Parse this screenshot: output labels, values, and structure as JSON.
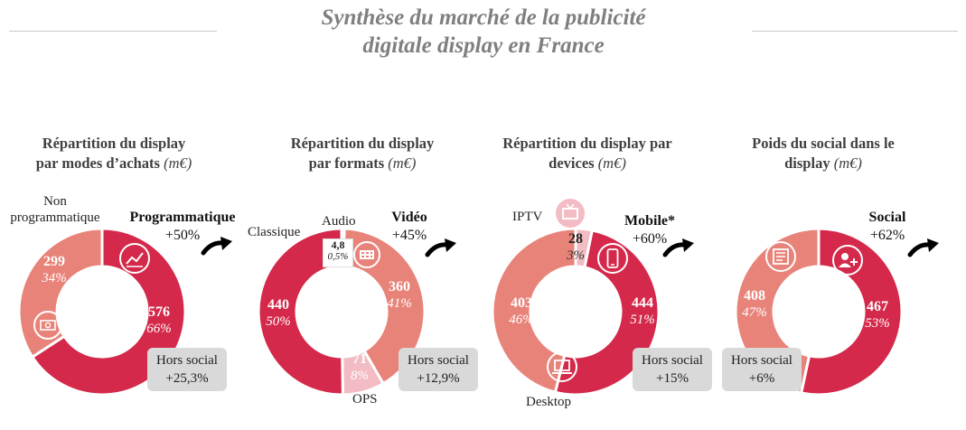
{
  "header": {
    "title_line1": "Synthèse du marché de la publicité",
    "title_line2": "digitale display en France"
  },
  "colors": {
    "crimson": "#d4294a",
    "salmon": "#e88379",
    "pink_light": "#f3bcc4",
    "badge_bg": "#d9d9d9",
    "title_gray": "#7f7f7f"
  },
  "panels": {
    "p1": {
      "title_line1": "Répartition du display",
      "title_line2": "par modes d’achats",
      "unit": "(m€)",
      "label_prog": "Programmatique",
      "growth_prog": "+50%",
      "label_nonprog_1": "Non",
      "label_nonprog_2": "programmatique",
      "badge_line1": "Hors social",
      "badge_line2": "+25,3%",
      "icons": [
        "chart-icon",
        "money-icon"
      ]
    },
    "p2": {
      "title_line1": "Répartition du display",
      "title_line2": "par formats",
      "unit": "(m€)",
      "label_video": "Vidéo",
      "growth_video": "+45%",
      "label_classique": "Classique",
      "label_audio": "Audio",
      "label_ops": "OPS",
      "badge_line1": "Hors social",
      "badge_line2": "+12,9%",
      "icons": [
        "film-icon"
      ]
    },
    "p3": {
      "title_line1": "Répartition du display par",
      "title_line2": "devices",
      "unit": "(m€)",
      "label_mobile": "Mobile*",
      "growth_mobile": "+60%",
      "label_iptv": "IPTV",
      "label_desktop": "Desktop",
      "badge_line1": "Hors social",
      "badge_line2": "+15%",
      "icons": [
        "tv-icon",
        "smartphone-icon",
        "laptop-icon"
      ]
    },
    "p4": {
      "title_line1": "Poids du social dans le",
      "title_line2": "display",
      "unit": "(m€)",
      "label_social": "Social",
      "growth_social": "+62%",
      "badge_line1": "Hors social",
      "badge_line2": "+6%",
      "icons": [
        "news-icon",
        "add-user-icon"
      ]
    }
  },
  "chart_data": [
    {
      "type": "pie",
      "title": "Répartition du display par modes d’achats (m€)",
      "categories": [
        "Programmatique",
        "Non programmatique"
      ],
      "values": [
        576,
        299
      ],
      "labels": [
        "576",
        "299"
      ],
      "percent_labels": [
        "66%",
        "34%"
      ],
      "colors": [
        "#d4294a",
        "#e88379"
      ]
    },
    {
      "type": "pie",
      "title": "Répartition du display par formats (m€)",
      "categories": [
        "Audio",
        "Vidéo",
        "OPS",
        "Classique"
      ],
      "values": [
        4.8,
        360,
        71,
        440
      ],
      "labels": [
        "4,8",
        "360",
        "71",
        "440"
      ],
      "percent_labels": [
        "0,5%",
        "41%",
        "8%",
        "50%"
      ],
      "colors": [
        "#7a1a2d",
        "#e88379",
        "#f3bcc4",
        "#d4294a"
      ]
    },
    {
      "type": "pie",
      "title": "Répartition du display par devices (m€)",
      "categories": [
        "IPTV",
        "Mobile*",
        "Desktop"
      ],
      "values": [
        28,
        444,
        403
      ],
      "labels": [
        "28",
        "444",
        "403"
      ],
      "percent_labels": [
        "3%",
        "51%",
        "46%"
      ],
      "colors": [
        "#f3bcc4",
        "#d4294a",
        "#e88379"
      ]
    },
    {
      "type": "pie",
      "title": "Poids du social dans le display (m€)",
      "categories": [
        "Social",
        "Hors social"
      ],
      "values": [
        467,
        408
      ],
      "labels": [
        "467",
        "408"
      ],
      "percent_labels": [
        "53%",
        "47%"
      ],
      "colors": [
        "#d4294a",
        "#e88379"
      ]
    }
  ]
}
